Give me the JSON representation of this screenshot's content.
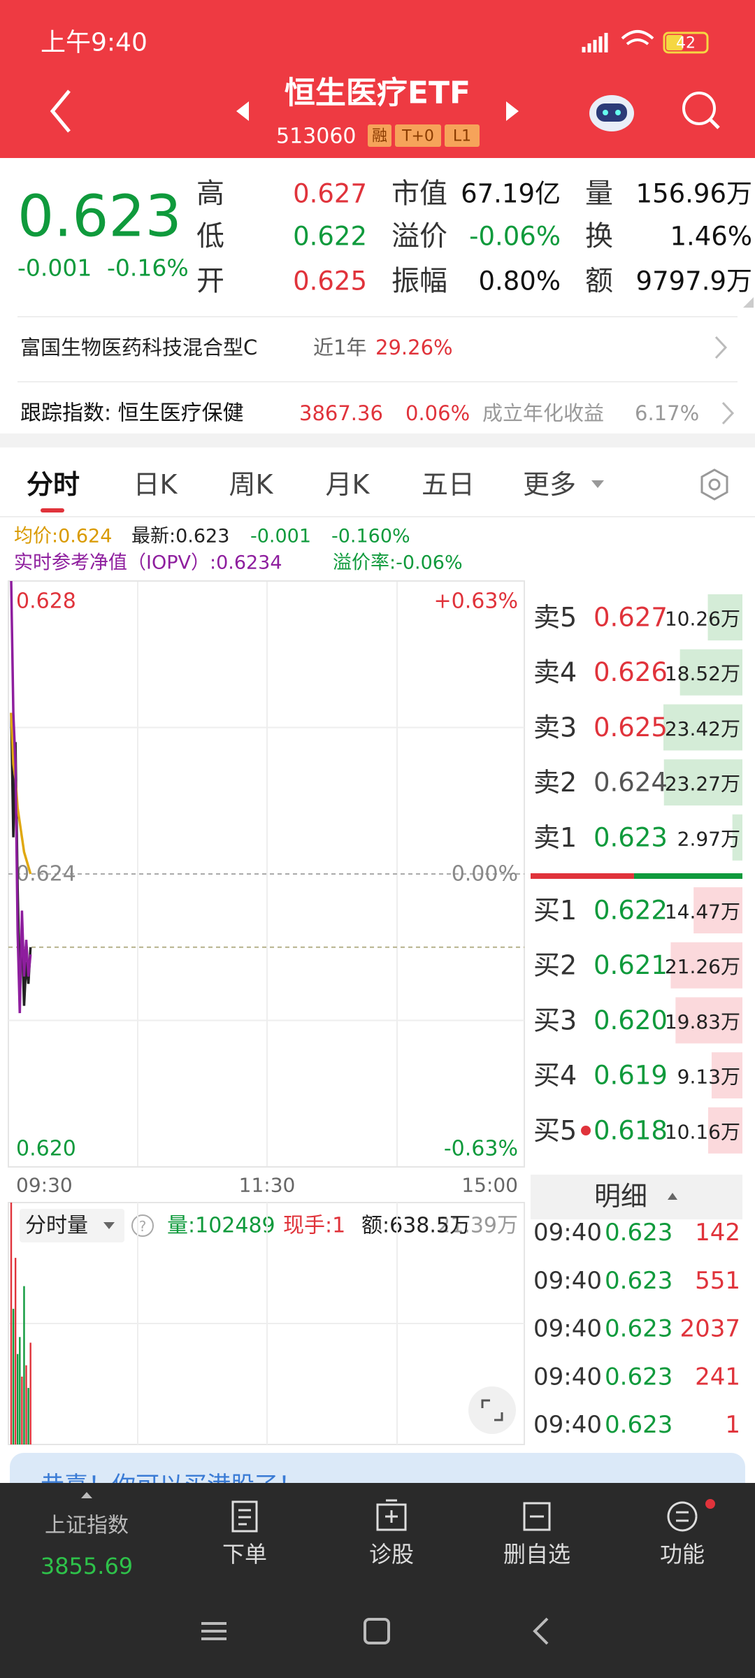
{
  "status_bar": {
    "time": "上午9:40",
    "battery": "42"
  },
  "header": {
    "title": "恒生医疗ETF",
    "code": "513060",
    "tags": [
      "融",
      "T+0",
      "L1"
    ]
  },
  "quote": {
    "price": "0.623",
    "change": "-0.001",
    "change_pct": "-0.16%",
    "stats": [
      {
        "label": "高",
        "value": "0.627",
        "tone": "up"
      },
      {
        "label": "低",
        "value": "0.622",
        "tone": "down"
      },
      {
        "label": "开",
        "value": "0.625",
        "tone": "up"
      },
      {
        "label": "市值",
        "value": "67.19亿",
        "tone": "flat"
      },
      {
        "label": "溢价",
        "value": "-0.06%",
        "tone": "down"
      },
      {
        "label": "振幅",
        "value": "0.80%",
        "tone": "flat"
      },
      {
        "label": "量",
        "value": "156.96万",
        "tone": "flat"
      },
      {
        "label": "换",
        "value": "1.46%",
        "tone": "flat"
      },
      {
        "label": "额",
        "value": "9797.9万",
        "tone": "flat"
      }
    ]
  },
  "fund": {
    "name": "富国生物医药科技混合型C",
    "period": "近1年",
    "return": "29.26%"
  },
  "index": {
    "label": "跟踪指数: 恒生医疗保健",
    "value": "3867.36",
    "change": "0.06%",
    "annual_label": "成立年化收益",
    "annual": "6.17%"
  },
  "tabs": [
    "分时",
    "日K",
    "周K",
    "月K",
    "五日",
    "更多"
  ],
  "intraday": {
    "avg_label": "均价:0.624",
    "latest_label": "最新:0.623",
    "change": "-0.001",
    "change_pct": "-0.160%",
    "iopv_label": "实时参考净值（IOPV）:0.6234",
    "premium_label": "溢价率:-0.06%",
    "ylim": [
      0.62,
      0.628
    ],
    "yticks": [
      0.628,
      0.624,
      {
        "value": 0.62,
        "label": "0.620"
      }
    ],
    "pct_labels": [
      "+0.63%",
      "0.00%",
      "-0.63%"
    ],
    "time_labels": [
      "09:30",
      "11:30",
      "15:00"
    ],
    "series": [
      {
        "name": "price",
        "color": "#222222",
        "values": [
          0.6262,
          0.6245,
          0.6258,
          0.6238,
          0.6225,
          0.6232,
          0.6222,
          0.6228,
          0.6225,
          0.623
        ]
      },
      {
        "name": "avg",
        "color": "#e0a810",
        "values": [
          0.6262,
          0.6255,
          0.6253,
          0.6249,
          0.6247,
          0.6245,
          0.6243,
          0.6242,
          0.6241,
          0.624
        ]
      },
      {
        "name": "iopv",
        "color": "#8e1e9e",
        "values": [
          0.628,
          0.6262,
          0.6255,
          0.6232,
          0.6221,
          0.6235,
          0.6226,
          0.6231,
          0.6226,
          0.6229
        ]
      }
    ]
  },
  "volume": {
    "label": "分时量",
    "volume_label": "量:102489",
    "last_label": "现手:1",
    "amount_label": "额:638.5万",
    "max_label": "21.39万",
    "vlim": [
      0,
      213900
    ],
    "values": [
      213900,
      120000,
      165000,
      80000,
      95000,
      60000,
      140000,
      70000,
      50000,
      90000
    ]
  },
  "order_book": {
    "asks": [
      {
        "label": "卖5",
        "price": "0.627",
        "tone": "up",
        "volume": 10.26,
        "volume_label": "10.26万"
      },
      {
        "label": "卖4",
        "price": "0.626",
        "tone": "up",
        "volume": 18.52,
        "volume_label": "18.52万"
      },
      {
        "label": "卖3",
        "price": "0.625",
        "tone": "up",
        "volume": 23.42,
        "volume_label": "23.42万"
      },
      {
        "label": "卖2",
        "price": "0.624",
        "tone": "flat",
        "volume": 23.27,
        "volume_label": "23.27万"
      },
      {
        "label": "卖1",
        "price": "0.623",
        "tone": "down",
        "volume": 2.97,
        "volume_label": "2.97万"
      }
    ],
    "bids": [
      {
        "label": "买1",
        "price": "0.622",
        "tone": "down",
        "volume": 14.47,
        "volume_label": "14.47万"
      },
      {
        "label": "买2",
        "price": "0.621",
        "tone": "down",
        "volume": 21.26,
        "volume_label": "21.26万"
      },
      {
        "label": "买3",
        "price": "0.620",
        "tone": "down",
        "volume": 19.83,
        "volume_label": "19.83万"
      },
      {
        "label": "买4",
        "price": "0.619",
        "tone": "down",
        "volume": 9.13,
        "volume_label": "9.13万"
      },
      {
        "label": "买5",
        "price": "0.618",
        "tone": "down",
        "volume": 10.16,
        "volume_label": "10.16万"
      }
    ]
  },
  "trades": {
    "header": "明细",
    "rows": [
      {
        "time": "09:40",
        "price": "0.623",
        "qty": "142"
      },
      {
        "time": "09:40",
        "price": "0.623",
        "qty": "551"
      },
      {
        "time": "09:40",
        "price": "0.623",
        "qty": "2037"
      },
      {
        "time": "09:40",
        "price": "0.623",
        "qty": "241"
      },
      {
        "time": "09:40",
        "price": "0.623",
        "qty": "1"
      }
    ]
  },
  "banner": {
    "text": "恭喜！你可以买港股了！"
  },
  "nav": {
    "index_name": "上证指数",
    "index_value": "3855.69",
    "items": [
      "下单",
      "诊股",
      "删自选",
      "功能"
    ]
  }
}
